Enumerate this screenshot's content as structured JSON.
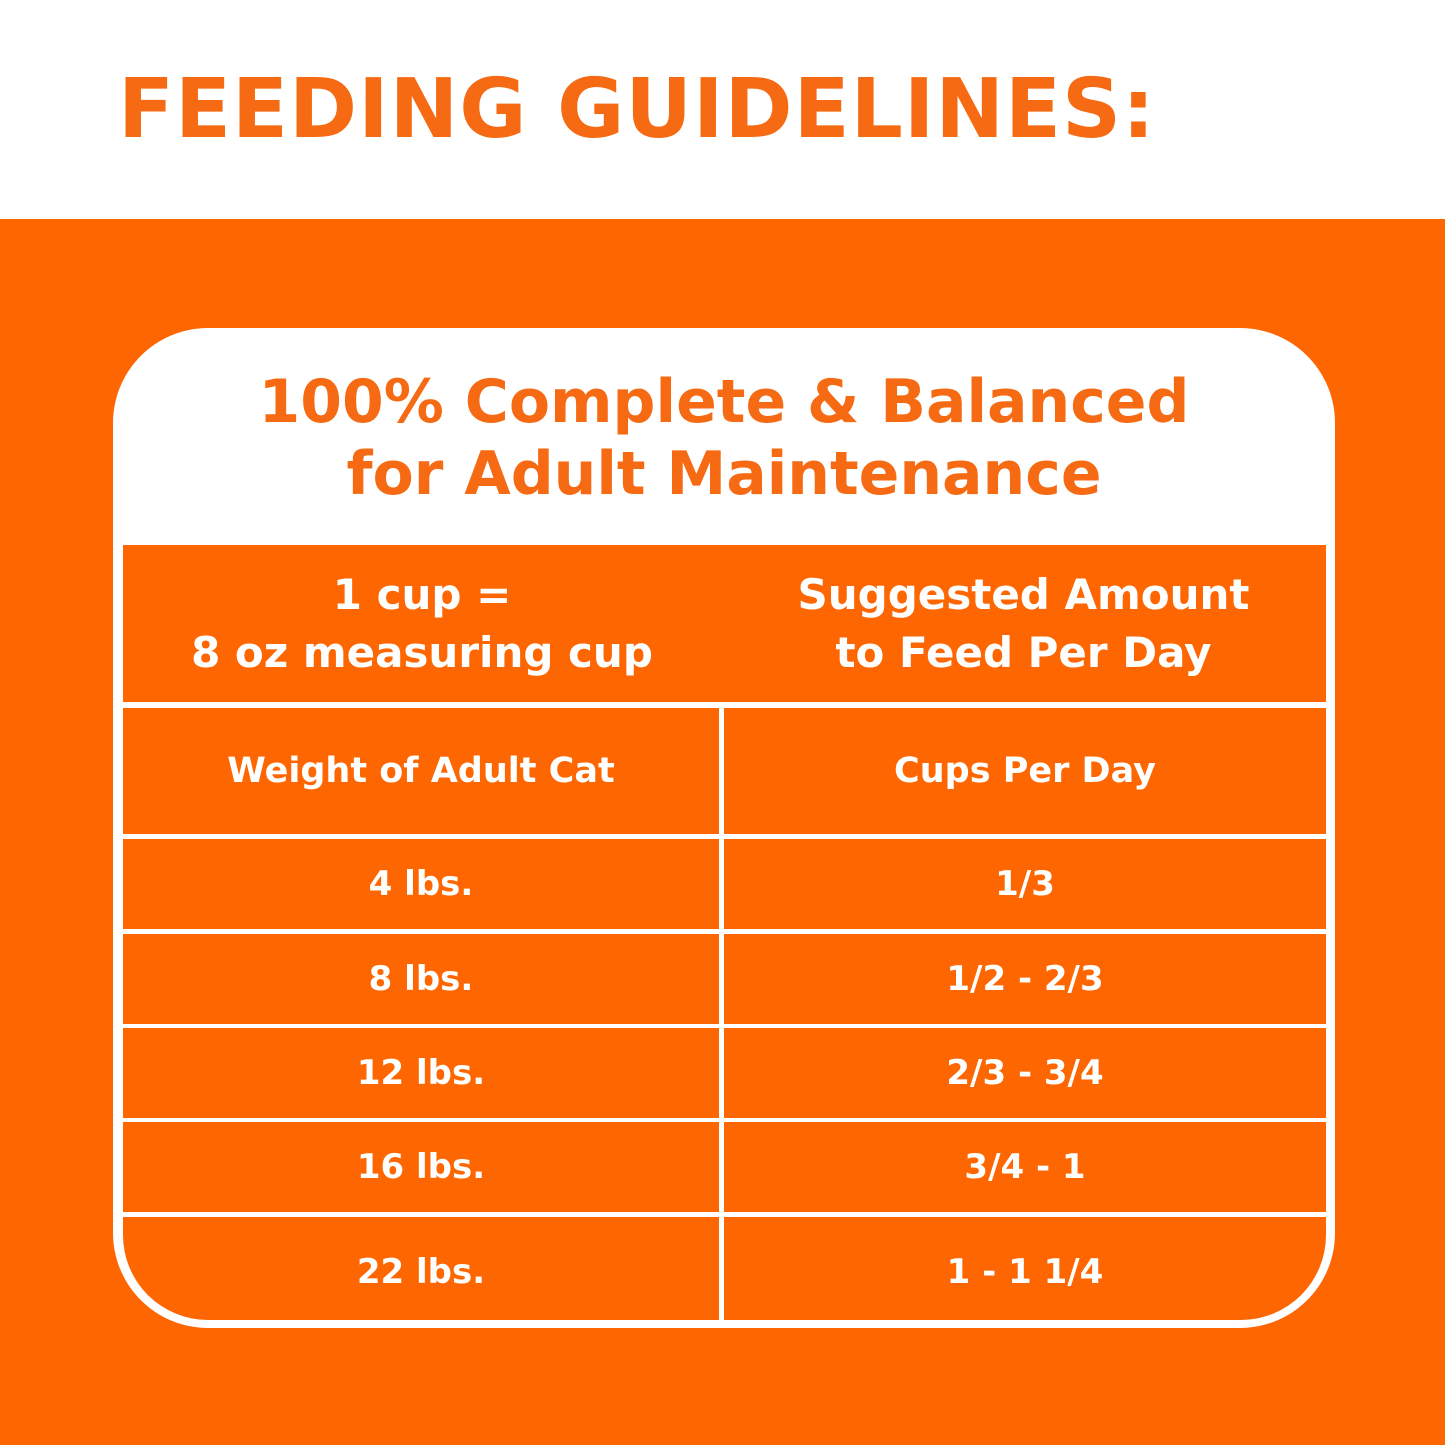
{
  "title": "FEEDING GUIDELINES:",
  "subtitle": {
    "line1": "100% Complete & Balanced",
    "line2": "for Adult Maintenance"
  },
  "header": {
    "left_line1": "1 cup =",
    "left_line2": "8 oz measuring cup",
    "right_line1": "Suggested Amount",
    "right_line2": "to Feed Per Day"
  },
  "columns": [
    "Weight of Adult Cat",
    "Cups Per Day"
  ],
  "rows": [
    [
      "4 lbs.",
      "1/3"
    ],
    [
      "8 lbs.",
      "1/2 - 2/3"
    ],
    [
      "12 lbs.",
      "2/3 - 3/4"
    ],
    [
      "16 lbs.",
      "3/4 - 1"
    ],
    [
      "22 lbs.",
      "1 - 1 1/4"
    ]
  ],
  "colors": {
    "orange": "#fe6601",
    "title_orange": "#f56a12"
  }
}
